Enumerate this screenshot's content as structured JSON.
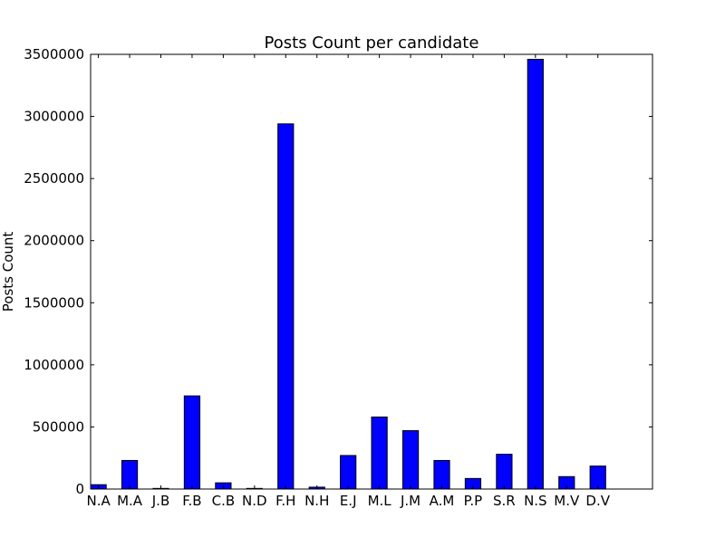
{
  "chart_data": {
    "type": "bar",
    "title": "Posts Count per candidate",
    "xlabel": "",
    "ylabel": "Posts Count",
    "categories": [
      "N.A",
      "M.A",
      "J.B",
      "F.B",
      "C.B",
      "N.D",
      "F.H",
      "N.H",
      "E.J",
      "M.L",
      "J.M",
      "A.M",
      "P.P",
      "S.R",
      "N.S",
      "M.V",
      "D.V"
    ],
    "values": [
      35000,
      230000,
      5000,
      750000,
      50000,
      5000,
      2940000,
      15000,
      270000,
      580000,
      470000,
      230000,
      85000,
      280000,
      3460000,
      100000,
      185000
    ],
    "ylim": [
      0,
      3500000
    ],
    "yticks": [
      "0",
      "500000",
      "1000000",
      "1500000",
      "2000000",
      "2500000",
      "3000000",
      "3500000"
    ],
    "ytick_values": [
      0,
      500000,
      1000000,
      1500000,
      2000000,
      2500000,
      3000000,
      3500000
    ],
    "bar_color": "#0000ff",
    "edge_color": "#000000",
    "grid": false,
    "legend": "none"
  }
}
